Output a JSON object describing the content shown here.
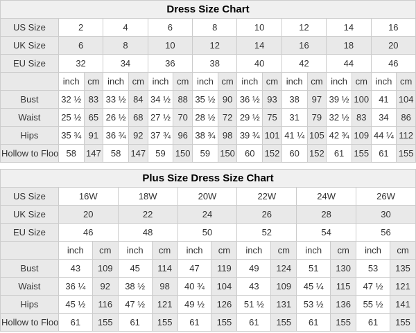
{
  "colors": {
    "border": "#cccccc",
    "shaded_cell": "#e9e9e9",
    "title_bg": "#f0f0f0",
    "text": "#333333",
    "title_text": "#000000"
  },
  "chart_data": [
    {
      "type": "table",
      "title": "Dress Size Chart",
      "units": [
        "inch",
        "cm"
      ],
      "size_rows": [
        {
          "label": "US Size",
          "shaded": false,
          "values": [
            "2",
            "4",
            "6",
            "8",
            "10",
            "12",
            "14",
            "16"
          ]
        },
        {
          "label": "UK Size",
          "shaded": true,
          "values": [
            "6",
            "8",
            "10",
            "12",
            "14",
            "16",
            "18",
            "20"
          ]
        },
        {
          "label": "EU Size",
          "shaded": false,
          "values": [
            "32",
            "34",
            "36",
            "38",
            "40",
            "42",
            "44",
            "46"
          ]
        }
      ],
      "measure_rows": [
        {
          "label": "Bust",
          "values": [
            [
              "32 ½",
              "83"
            ],
            [
              "33 ½",
              "84"
            ],
            [
              "34 ½",
              "88"
            ],
            [
              "35 ½",
              "90"
            ],
            [
              "36 ½",
              "93"
            ],
            [
              "38",
              "97"
            ],
            [
              "39 ½",
              "100"
            ],
            [
              "41",
              "104"
            ]
          ]
        },
        {
          "label": "Waist",
          "values": [
            [
              "25 ½",
              "65"
            ],
            [
              "26 ½",
              "68"
            ],
            [
              "27 ½",
              "70"
            ],
            [
              "28 ½",
              "72"
            ],
            [
              "29 ½",
              "75"
            ],
            [
              "31",
              "79"
            ],
            [
              "32 ½",
              "83"
            ],
            [
              "34",
              "86"
            ]
          ]
        },
        {
          "label": "Hips",
          "values": [
            [
              "35 ¾",
              "91"
            ],
            [
              "36 ¾",
              "92"
            ],
            [
              "37 ¾",
              "96"
            ],
            [
              "38 ¾",
              "98"
            ],
            [
              "39 ¾",
              "101"
            ],
            [
              "41 ¼",
              "105"
            ],
            [
              "42 ¾",
              "109"
            ],
            [
              "44 ¼",
              "112"
            ]
          ]
        },
        {
          "label": "Hollow to Floor",
          "values": [
            [
              "58",
              "147"
            ],
            [
              "58",
              "147"
            ],
            [
              "59",
              "150"
            ],
            [
              "59",
              "150"
            ],
            [
              "60",
              "152"
            ],
            [
              "60",
              "152"
            ],
            [
              "61",
              "155"
            ],
            [
              "61",
              "155"
            ]
          ]
        }
      ]
    },
    {
      "type": "table",
      "title": "Plus Size Dress Size Chart",
      "units": [
        "inch",
        "cm"
      ],
      "size_rows": [
        {
          "label": "US Size",
          "shaded": false,
          "values": [
            "16W",
            "18W",
            "20W",
            "22W",
            "24W",
            "26W"
          ]
        },
        {
          "label": "UK Size",
          "shaded": true,
          "values": [
            "20",
            "22",
            "24",
            "26",
            "28",
            "30"
          ]
        },
        {
          "label": "EU Size",
          "shaded": false,
          "values": [
            "46",
            "48",
            "50",
            "52",
            "54",
            "56"
          ]
        }
      ],
      "measure_rows": [
        {
          "label": "Bust",
          "values": [
            [
              "43",
              "109"
            ],
            [
              "45",
              "114"
            ],
            [
              "47",
              "119"
            ],
            [
              "49",
              "124"
            ],
            [
              "51",
              "130"
            ],
            [
              "53",
              "135"
            ]
          ]
        },
        {
          "label": "Waist",
          "values": [
            [
              "36 ¼",
              "92"
            ],
            [
              "38 ½",
              "98"
            ],
            [
              "40 ¾",
              "104"
            ],
            [
              "43",
              "109"
            ],
            [
              "45 ¼",
              "115"
            ],
            [
              "47 ½",
              "121"
            ]
          ]
        },
        {
          "label": "Hips",
          "values": [
            [
              "45 ½",
              "116"
            ],
            [
              "47 ½",
              "121"
            ],
            [
              "49 ½",
              "126"
            ],
            [
              "51 ½",
              "131"
            ],
            [
              "53 ½",
              "136"
            ],
            [
              "55 ½",
              "141"
            ]
          ]
        },
        {
          "label": "Hollow to Floor",
          "values": [
            [
              "61",
              "155"
            ],
            [
              "61",
              "155"
            ],
            [
              "61",
              "155"
            ],
            [
              "61",
              "155"
            ],
            [
              "61",
              "155"
            ],
            [
              "61",
              "155"
            ]
          ]
        }
      ]
    }
  ]
}
